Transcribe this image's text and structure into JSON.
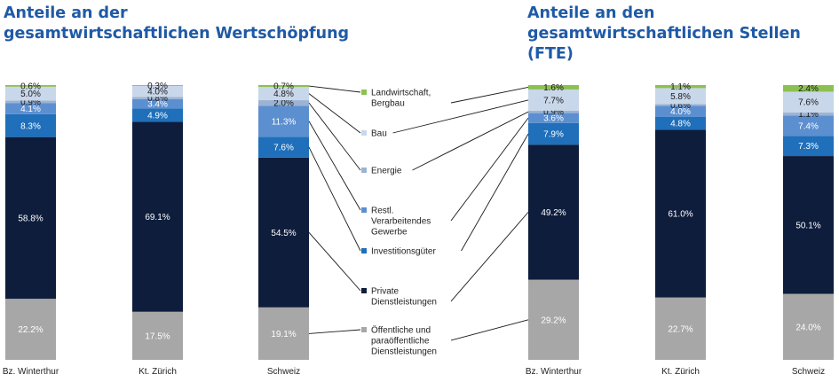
{
  "colors": {
    "Landwirtschaft, Bergbau": "#8cc152",
    "Bau": "#c9d7ea",
    "Energie": "#9bb3d4",
    "Restl. Verarbeitendes Gewerbe": "#5c8fd0",
    "Investitionsgüter": "#1f6fba",
    "Private Dienstleistungen": "#0e1d3c",
    "Öffentliche und paraöffentliche Dienstleistungen": "#a7a7a7"
  },
  "legend": [
    {
      "key": "Landwirtschaft, Bergbau",
      "lines": [
        "Landwirtschaft,",
        "Bergbau"
      ]
    },
    {
      "key": "Bau",
      "lines": [
        "Bau"
      ]
    },
    {
      "key": "Energie",
      "lines": [
        "Energie"
      ]
    },
    {
      "key": "Restl. Verarbeitendes Gewerbe",
      "lines": [
        "Restl.",
        "Verarbeitendes",
        "Gewerbe"
      ]
    },
    {
      "key": "Investitionsgüter",
      "lines": [
        "Investitionsgüter"
      ]
    },
    {
      "key": "Private Dienstleistungen",
      "lines": [
        "Private",
        "Dienstleistungen"
      ]
    },
    {
      "key": "Öffentliche und paraöffentliche Dienstleistungen",
      "lines": [
        "Öffentliche und",
        "paraöffentliche",
        "Dienstleistungen"
      ]
    }
  ],
  "chart_data": [
    {
      "type": "bar",
      "stacked": true,
      "normalized": true,
      "title": "Anteile an der gesamtwirtschaftlichen Wertschöpfung",
      "title_lines": [
        "Anteile an der",
        "gesamtwirtschaftlichen Wertschöpfung"
      ],
      "categories": [
        "Bz. Winterthur",
        "Kt. Zürich",
        "Schweiz"
      ],
      "series": [
        {
          "name": "Öffentliche und paraöffentliche Dienstleistungen",
          "values": [
            22.2,
            17.5,
            19.1
          ],
          "labels": [
            "22.2%",
            "17.5%",
            "19.1%"
          ]
        },
        {
          "name": "Private Dienstleistungen",
          "values": [
            58.8,
            69.1,
            54.5
          ],
          "labels": [
            "58.8%",
            "69.1%",
            "54.5%"
          ]
        },
        {
          "name": "Investitionsgüter",
          "values": [
            8.3,
            4.9,
            7.6
          ],
          "labels": [
            "8.3%",
            "4.9%",
            "7.6%"
          ]
        },
        {
          "name": "Restl. Verarbeitendes Gewerbe",
          "values": [
            4.1,
            3.4,
            11.3
          ],
          "labels": [
            "4.1%",
            "3.4%",
            "11.3%"
          ]
        },
        {
          "name": "Energie",
          "values": [
            0.9,
            0.8,
            2.0
          ],
          "labels": [
            "0.9%",
            "0.8%",
            "2.0%"
          ]
        },
        {
          "name": "Bau",
          "values": [
            5.0,
            4.0,
            4.8
          ],
          "labels": [
            "5.0%",
            "4.0%",
            "4.8%"
          ]
        },
        {
          "name": "Landwirtschaft, Bergbau",
          "values": [
            0.6,
            0.3,
            0.7
          ],
          "labels": [
            "0.6%",
            "0.3%",
            "0.7%"
          ]
        }
      ],
      "ylim": [
        0,
        100
      ],
      "grid": false,
      "legend": "center"
    },
    {
      "type": "bar",
      "stacked": true,
      "normalized": true,
      "title": "Anteile an den gesamtwirtschaftlichen Stellen (FTE)",
      "title_lines": [
        "Anteile an den",
        "gesamtwirtschaftlichen Stellen (FTE)"
      ],
      "categories": [
        "Bz. Winterthur",
        "Kt. Zürich",
        "Schweiz"
      ],
      "series": [
        {
          "name": "Öffentliche und paraöffentliche Dienstleistungen",
          "values": [
            29.2,
            22.7,
            24.0
          ],
          "labels": [
            "29.2%",
            "22.7%",
            "24.0%"
          ]
        },
        {
          "name": "Private Dienstleistungen",
          "values": [
            49.2,
            61.0,
            50.1
          ],
          "labels": [
            "49.2%",
            "61.0%",
            "50.1%"
          ]
        },
        {
          "name": "Investitionsgüter",
          "values": [
            7.9,
            4.8,
            7.3
          ],
          "labels": [
            "7.9%",
            "4.8%",
            "7.3%"
          ]
        },
        {
          "name": "Restl. Verarbeitendes Gewerbe",
          "values": [
            3.6,
            4.0,
            7.4
          ],
          "labels": [
            "3.6%",
            "4.0%",
            "7.4%"
          ]
        },
        {
          "name": "Energie",
          "values": [
            0.9,
            0.6,
            1.1
          ],
          "labels": [
            "0.9%",
            "0.6%",
            "1.1%"
          ]
        },
        {
          "name": "Bau",
          "values": [
            7.7,
            5.8,
            7.6
          ],
          "labels": [
            "7.7%",
            "5.8%",
            "7.6%"
          ]
        },
        {
          "name": "Landwirtschaft, Bergbau",
          "values": [
            1.6,
            1.1,
            2.4
          ],
          "labels": [
            "1.6%",
            "1.1%",
            "2.4%"
          ]
        }
      ],
      "ylim": [
        0,
        100
      ],
      "grid": false,
      "legend": "center"
    }
  ]
}
